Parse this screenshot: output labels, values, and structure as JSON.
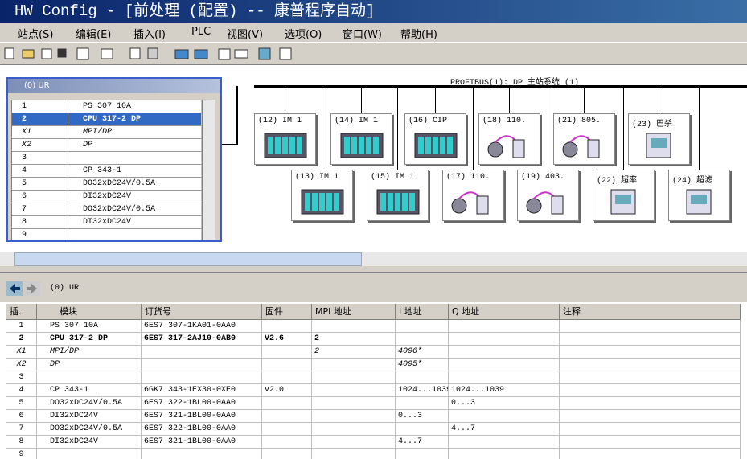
{
  "window": {
    "title": "HW Config - [前处理 (配置) -- 康普程序自动]"
  },
  "menu": [
    "站点(S)",
    "编辑(E)",
    "插入(I)",
    "PLC",
    "视图(V)",
    "选项(O)",
    "窗口(W)",
    "帮助(H)"
  ],
  "rack": {
    "title": "(0) UR",
    "rows": [
      {
        "slot": "1",
        "module": "PS 307 10A"
      },
      {
        "slot": "2",
        "module": "CPU 317-2 DP"
      },
      {
        "slot": "X1",
        "module": "MPI/DP"
      },
      {
        "slot": "X2",
        "module": "DP"
      },
      {
        "slot": "3"
      },
      {
        "slot": "4",
        "module": "CP 343-1"
      },
      {
        "slot": "5",
        "module": "DO32xDC24V/0.5A"
      },
      {
        "slot": "6",
        "module": "DI32xDC24V"
      },
      {
        "slot": "7",
        "module": "DO32xDC24V/0.5A"
      },
      {
        "slot": "8",
        "module": "DI32xDC24V"
      },
      {
        "slot": "9"
      }
    ]
  },
  "network": {
    "label": "PROFIBUS(1): DP 主站系统 (1)",
    "stations": [
      "(12) IM 1",
      "(14) IM 1",
      "(16) CIP",
      "(18) 110.",
      "(21) 805.",
      "(23) 巴杀",
      "(13) IM 1",
      "(15) IM 1",
      "(17) 110.",
      "(19) 403.",
      "(22) 超率",
      "(24) 超滤"
    ]
  },
  "detail": {
    "title": "(0)  UR",
    "headers": [
      "插..",
      "模块",
      "订货号",
      "固件",
      "MPI 地址",
      "I 地址",
      "Q 地址",
      "注释"
    ],
    "rows": [
      {
        "slot": "1",
        "module": "PS 307 10A",
        "order": "6ES7 307-1KA01-0AA0"
      },
      {
        "slot": "2",
        "module": "CPU 317-2 DP",
        "order": "6ES7 317-2AJ10-0AB0",
        "firmware": "V2.6",
        "mpi": "2"
      },
      {
        "slot": "X1",
        "module": "MPI/DP",
        "mpi": "2",
        "i": "4096*"
      },
      {
        "slot": "X2",
        "module": "DP",
        "i": "4095*"
      },
      {
        "slot": "3"
      },
      {
        "slot": "4",
        "module": "CP 343-1",
        "order": "6GK7 343-1EX30-0XE0",
        "firmware": "V2.0",
        "i": "1024...1039",
        "q": "1024...1039"
      },
      {
        "slot": "5",
        "module": "DO32xDC24V/0.5A",
        "order": "6ES7 322-1BL00-0AA0",
        "q": "0...3"
      },
      {
        "slot": "6",
        "module": "DI32xDC24V",
        "order": "6ES7 321-1BL00-0AA0",
        "i": "0...3"
      },
      {
        "slot": "7",
        "module": "DO32xDC24V/0.5A",
        "order": "6ES7 322-1BL00-0AA0",
        "q": "4...7"
      },
      {
        "slot": "8",
        "module": "DI32xDC24V",
        "order": "6ES7 321-1BL00-0AA0",
        "i": "4...7"
      },
      {
        "slot": "9"
      }
    ]
  }
}
